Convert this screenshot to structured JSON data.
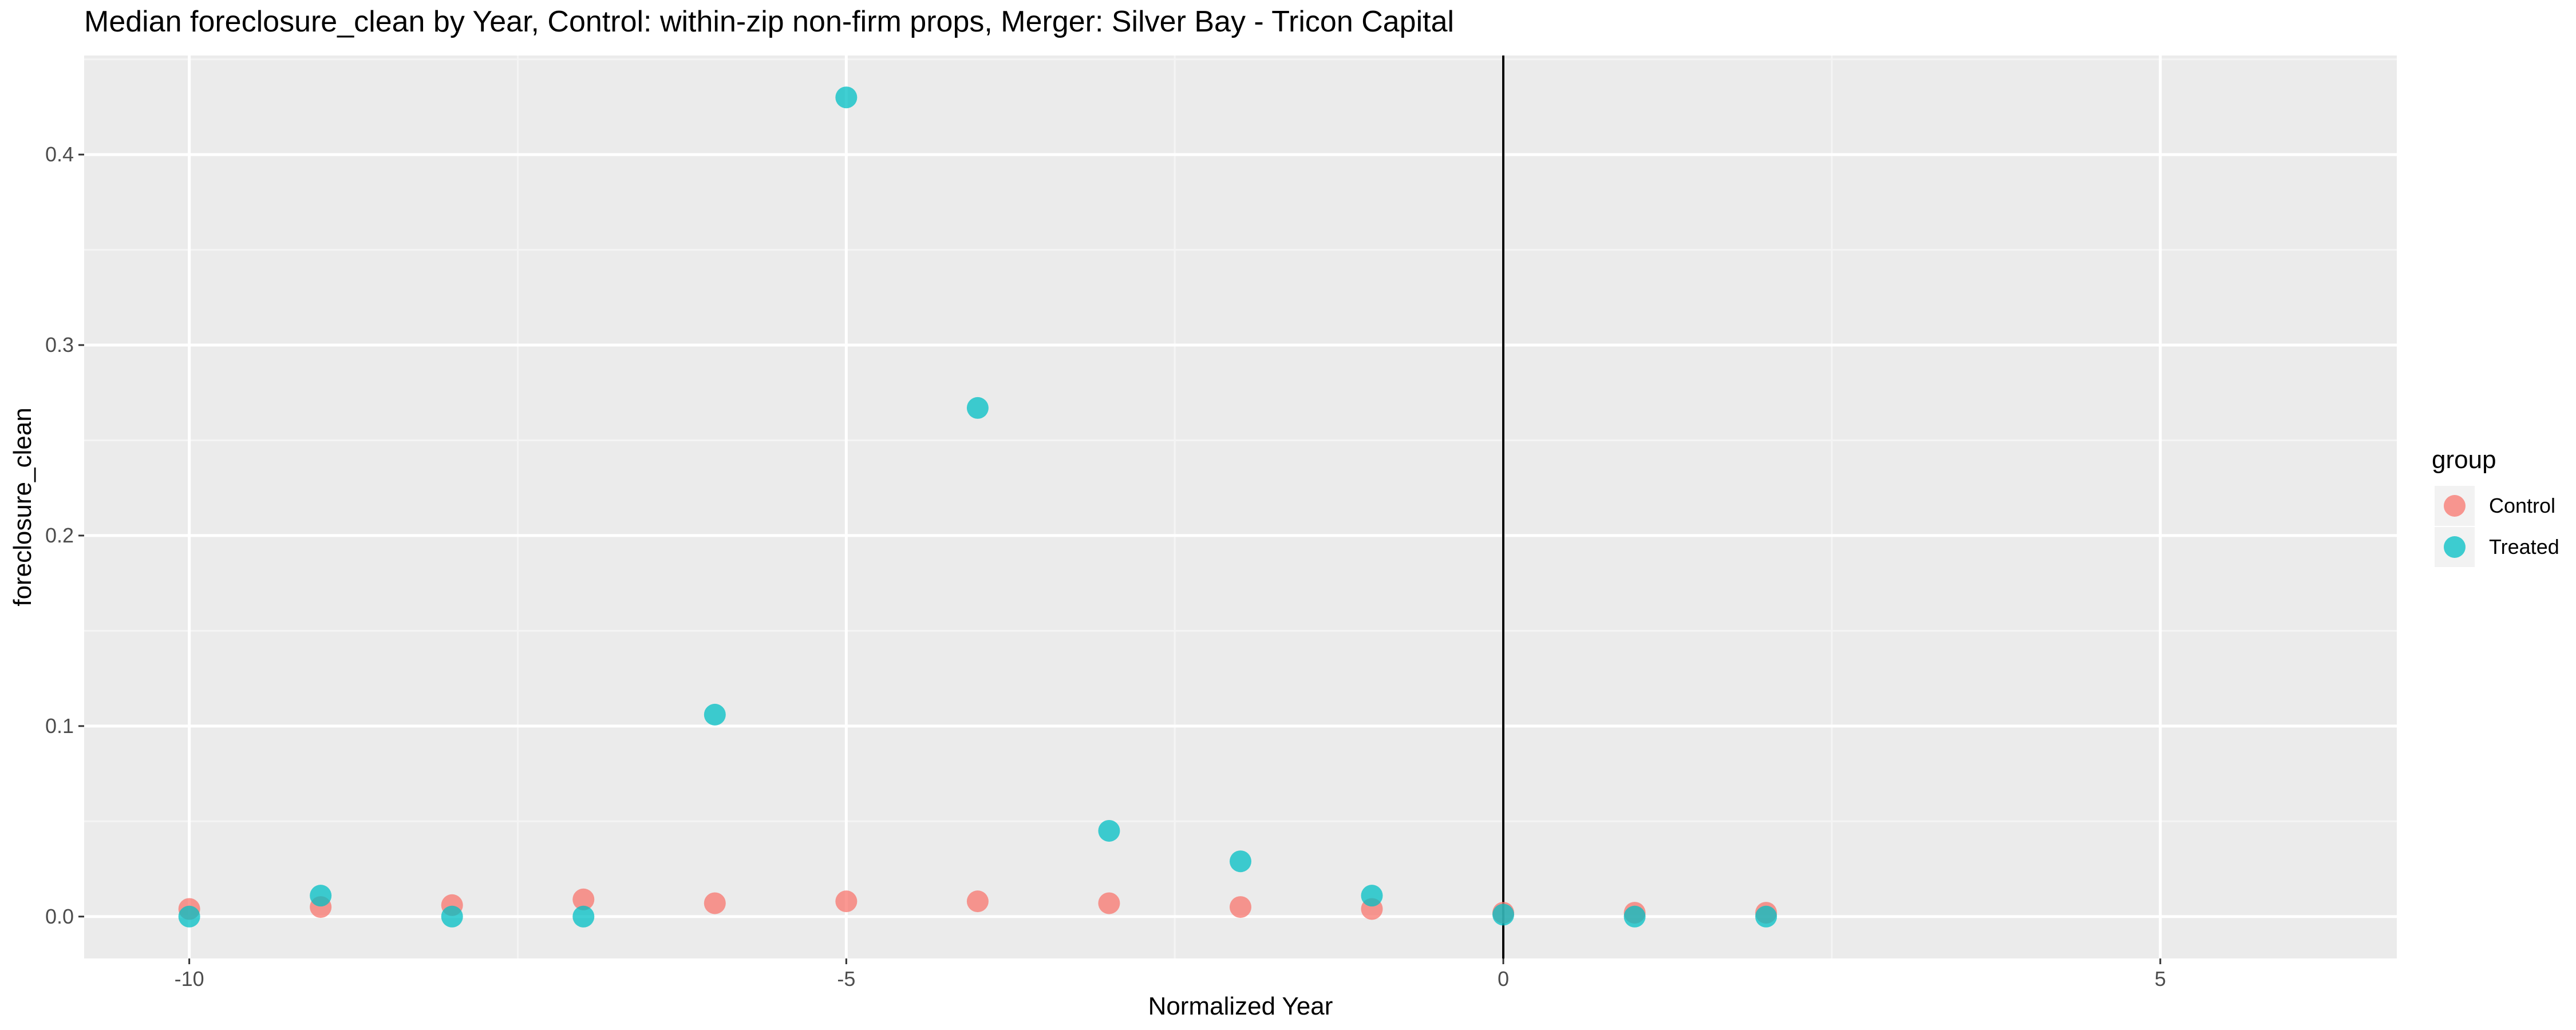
{
  "chart_data": {
    "type": "scatter",
    "title": "Median foreclosure_clean by Year, Control: within-zip non-firm props, Merger: Silver Bay - Tricon Capital",
    "xlabel": "Normalized Year",
    "ylabel": "foreclosure_clean",
    "xlim": [
      -10.8,
      6.8
    ],
    "ylim": [
      -0.022,
      0.452
    ],
    "x_ticks": [
      -10,
      -5,
      0,
      5
    ],
    "x_tick_labels": [
      "-10",
      "-5",
      "0",
      "5"
    ],
    "y_ticks": [
      0.0,
      0.1,
      0.2,
      0.3,
      0.4
    ],
    "y_tick_labels": [
      "0.0",
      "0.1",
      "0.2",
      "0.3",
      "0.4"
    ],
    "vline_x": 0,
    "grid": true,
    "legend": {
      "title": "group",
      "position": "right"
    },
    "series": [
      {
        "name": "Control",
        "color": "#F8766D",
        "points": [
          {
            "x": -10,
            "y": 0.004
          },
          {
            "x": -9,
            "y": 0.005
          },
          {
            "x": -8,
            "y": 0.006
          },
          {
            "x": -7,
            "y": 0.009
          },
          {
            "x": -6,
            "y": 0.007
          },
          {
            "x": -5,
            "y": 0.008
          },
          {
            "x": -4,
            "y": 0.008
          },
          {
            "x": -3,
            "y": 0.007
          },
          {
            "x": -2,
            "y": 0.005
          },
          {
            "x": -1,
            "y": 0.004
          },
          {
            "x": 0,
            "y": 0.002
          },
          {
            "x": 1,
            "y": 0.002
          },
          {
            "x": 2,
            "y": 0.002
          }
        ]
      },
      {
        "name": "Treated",
        "color": "#00BFC4",
        "points": [
          {
            "x": -10,
            "y": 0.0
          },
          {
            "x": -9,
            "y": 0.011
          },
          {
            "x": -8,
            "y": 0.0
          },
          {
            "x": -7,
            "y": 0.0
          },
          {
            "x": -6,
            "y": 0.106
          },
          {
            "x": -5,
            "y": 0.43
          },
          {
            "x": -4,
            "y": 0.267
          },
          {
            "x": -3,
            "y": 0.045
          },
          {
            "x": -2,
            "y": 0.029
          },
          {
            "x": -1,
            "y": 0.011
          },
          {
            "x": 0,
            "y": 0.001
          },
          {
            "x": 1,
            "y": 0.0
          },
          {
            "x": 2,
            "y": 0.0
          }
        ]
      }
    ]
  }
}
